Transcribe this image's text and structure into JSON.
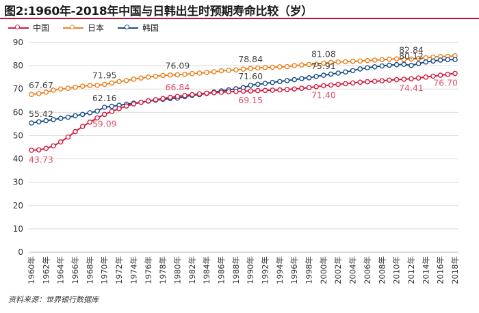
{
  "chart_data": {
    "type": "line",
    "title": "图2:1960年-2018年中国与日韩出生时预期寿命比较（岁）",
    "ylim": [
      0,
      90
    ],
    "yticks": [
      0,
      10,
      20,
      30,
      40,
      50,
      60,
      70,
      80,
      90
    ],
    "x": [
      1960,
      1961,
      1962,
      1963,
      1964,
      1965,
      1966,
      1967,
      1968,
      1969,
      1970,
      1971,
      1972,
      1973,
      1974,
      1975,
      1976,
      1977,
      1978,
      1979,
      1980,
      1981,
      1982,
      1983,
      1984,
      1985,
      1986,
      1987,
      1988,
      1989,
      1990,
      1991,
      1992,
      1993,
      1994,
      1995,
      1996,
      1997,
      1998,
      1999,
      2000,
      2001,
      2002,
      2003,
      2004,
      2005,
      2006,
      2007,
      2008,
      2009,
      2010,
      2011,
      2012,
      2013,
      2014,
      2015,
      2016,
      2017,
      2018
    ],
    "xtick_labels": [
      "1960年",
      "1962年",
      "1964年",
      "1966年",
      "1968年",
      "1970年",
      "1972年",
      "1974年",
      "1976年",
      "1978年",
      "1980年",
      "1982年",
      "1984年",
      "1986年",
      "1988年",
      "1990年",
      "1992年",
      "1994年",
      "1996年",
      "1998年",
      "2000年",
      "2002年",
      "2004年",
      "2006年",
      "2008年",
      "2010年",
      "2012年",
      "2014年",
      "2016年",
      "2018年"
    ],
    "series": [
      {
        "name": "中国",
        "color": "#d01c3f",
        "values": [
          43.73,
          43.9,
          44.5,
          45.6,
          47.3,
          49.4,
          51.7,
          53.9,
          55.8,
          57.6,
          59.09,
          60.4,
          61.6,
          62.7,
          63.6,
          64.3,
          64.9,
          65.4,
          65.9,
          66.4,
          66.84,
          67.2,
          67.6,
          67.9,
          68.2,
          68.4,
          68.6,
          68.8,
          68.9,
          69.05,
          69.15,
          69.3,
          69.4,
          69.5,
          69.6,
          69.8,
          70.0,
          70.3,
          70.6,
          71.0,
          71.4,
          71.7,
          72.0,
          72.3,
          72.6,
          72.9,
          73.1,
          73.3,
          73.5,
          73.8,
          74.0,
          74.2,
          74.41,
          74.7,
          75.1,
          75.5,
          75.9,
          76.3,
          76.7
        ]
      },
      {
        "name": "日本",
        "color": "#e8801f",
        "values": [
          67.67,
          68.0,
          68.6,
          69.5,
          70.0,
          70.3,
          70.8,
          71.2,
          71.5,
          71.6,
          71.95,
          72.6,
          73.2,
          73.6,
          74.2,
          74.7,
          75.1,
          75.5,
          75.8,
          76.0,
          76.09,
          76.3,
          76.6,
          76.8,
          77.1,
          77.4,
          77.8,
          78.0,
          78.2,
          78.5,
          78.84,
          79.0,
          79.2,
          79.3,
          79.5,
          79.6,
          80.0,
          80.3,
          80.5,
          80.6,
          81.08,
          81.4,
          81.6,
          81.7,
          81.9,
          82.0,
          82.2,
          82.4,
          82.6,
          82.8,
          82.9,
          82.6,
          82.84,
          83.1,
          83.4,
          83.7,
          83.9,
          84.0,
          84.2
        ]
      },
      {
        "name": "韩国",
        "color": "#174d8a",
        "values": [
          55.42,
          55.9,
          56.4,
          56.9,
          57.4,
          57.9,
          58.5,
          59.1,
          59.8,
          60.5,
          62.16,
          62.6,
          63.0,
          63.5,
          63.9,
          64.3,
          64.8,
          65.2,
          65.6,
          65.9,
          66.1,
          66.7,
          67.3,
          67.6,
          68.1,
          68.7,
          69.2,
          69.6,
          70.1,
          70.6,
          71.6,
          72.0,
          72.4,
          72.8,
          73.2,
          73.6,
          74.0,
          74.5,
          74.8,
          75.4,
          75.91,
          76.4,
          76.8,
          77.3,
          77.9,
          78.6,
          79.1,
          79.5,
          79.9,
          80.2,
          80.4,
          80.6,
          80.12,
          80.9,
          81.6,
          82.0,
          82.4,
          82.6,
          82.6
        ]
      }
    ],
    "data_labels": [
      {
        "series": 0,
        "year": 1960,
        "text": "43.73",
        "pos": "below"
      },
      {
        "series": 0,
        "year": 1970,
        "text": "59.09",
        "pos": "below"
      },
      {
        "series": 0,
        "year": 1980,
        "text": "66.84",
        "pos": "above"
      },
      {
        "series": 0,
        "year": 1990,
        "text": "69.15",
        "pos": "below"
      },
      {
        "series": 0,
        "year": 2000,
        "text": "71.40",
        "pos": "below"
      },
      {
        "series": 0,
        "year": 2012,
        "text": "74.41",
        "pos": "below"
      },
      {
        "series": 0,
        "year": 2018,
        "text": "76.70",
        "pos": "below"
      },
      {
        "series": 1,
        "year": 1960,
        "text": "67.67",
        "pos": "above"
      },
      {
        "series": 1,
        "year": 1970,
        "text": "71.95",
        "pos": "above"
      },
      {
        "series": 1,
        "year": 1980,
        "text": "76.09",
        "pos": "above"
      },
      {
        "series": 1,
        "year": 1990,
        "text": "78.84",
        "pos": "above"
      },
      {
        "series": 1,
        "year": 2000,
        "text": "81.08",
        "pos": "above"
      },
      {
        "series": 1,
        "year": 2012,
        "text": "82.84",
        "pos": "above"
      },
      {
        "series": 2,
        "year": 1960,
        "text": "55.42",
        "pos": "above"
      },
      {
        "series": 2,
        "year": 1970,
        "text": "62.16",
        "pos": "above"
      },
      {
        "series": 2,
        "year": 1990,
        "text": "71.60",
        "pos": "above"
      },
      {
        "series": 2,
        "year": 2000,
        "text": "75.91",
        "pos": "above"
      },
      {
        "series": 2,
        "year": 2012,
        "text": "80.12",
        "pos": "above"
      }
    ]
  },
  "source": "资料来源：世界银行数据库"
}
